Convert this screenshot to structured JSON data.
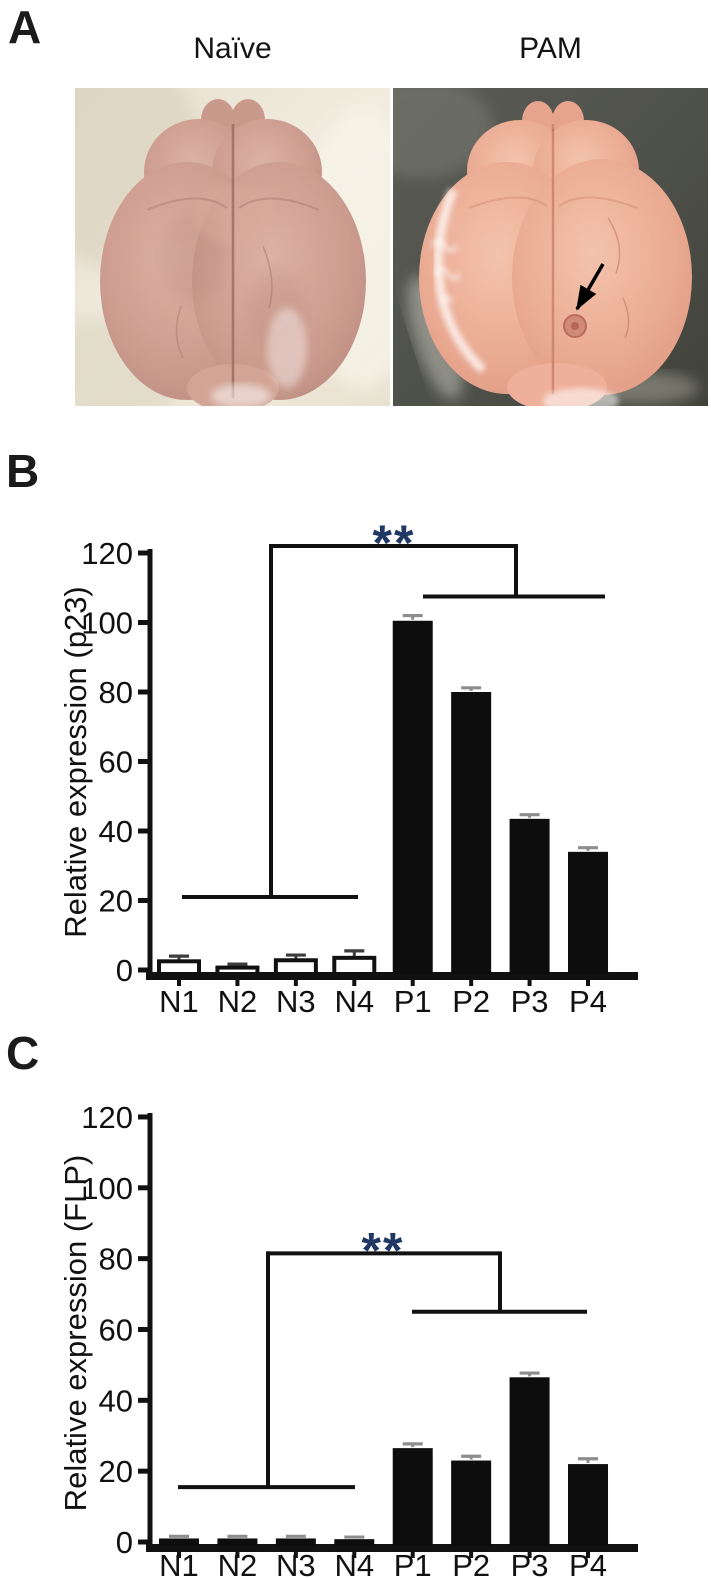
{
  "figure": {
    "colors": {
      "ink": "#111111",
      "significance_star": "#1f3864",
      "solid_bar": "#0d0d0d",
      "open_bar_fill": "#ffffff",
      "naive_photo_bg": "#ece5d6",
      "naive_brain": "#cc9c8f",
      "pam_photo_bg": "#50524a",
      "pam_brain": "#eaaa92"
    },
    "panels": {
      "a": {
        "letter": "A",
        "photos": [
          {
            "id": "naive",
            "label": "Naïve"
          },
          {
            "id": "pam",
            "label": "PAM",
            "annotation": "lesion-arrow"
          }
        ]
      },
      "b": {
        "letter": "B"
      },
      "c": {
        "letter": "C"
      }
    }
  },
  "chart_data": [
    {
      "panel": "B",
      "type": "bar",
      "title": "",
      "xlabel": "",
      "ylabel": "Relative expression (p23)",
      "categories": [
        "N1",
        "N2",
        "N3",
        "N4",
        "P1",
        "P2",
        "P3",
        "P4"
      ],
      "values": [
        2.5,
        0.7,
        2.8,
        3.5,
        100.5,
        80,
        43.5,
        34
      ],
      "errors": [
        1.5,
        1,
        1.5,
        2,
        1.5,
        1.2,
        1.2,
        1.2
      ],
      "bar_fill": [
        "open",
        "open",
        "open",
        "open",
        "solid",
        "solid",
        "solid",
        "solid"
      ],
      "bar_color": "#0d0d0d",
      "ylim": [
        0,
        120
      ],
      "yticks": [
        0,
        20,
        40,
        60,
        80,
        100,
        120
      ],
      "grid": false,
      "significance": {
        "label": "**",
        "color": "#1f3864",
        "compares": [
          "N1-N4",
          "P1-P4"
        ],
        "n_line_value": 21,
        "p_line_value": 107.5,
        "top_value": 122
      }
    },
    {
      "panel": "C",
      "type": "bar",
      "title": "",
      "xlabel": "",
      "ylabel": "Relative expression (FLP)",
      "categories": [
        "N1",
        "N2",
        "N3",
        "N4",
        "P1",
        "P2",
        "P3",
        "P4"
      ],
      "values": [
        1,
        1,
        1,
        0.8,
        26.5,
        23,
        46.5,
        22
      ],
      "errors": [
        0.6,
        0.6,
        0.6,
        0.6,
        1.2,
        1.2,
        1.2,
        1.5
      ],
      "bar_fill": [
        "solid",
        "solid",
        "solid",
        "solid",
        "solid",
        "solid",
        "solid",
        "solid"
      ],
      "bar_color": "#0d0d0d",
      "ylim": [
        0,
        120
      ],
      "yticks": [
        0,
        20,
        40,
        60,
        80,
        100,
        120
      ],
      "grid": false,
      "significance": {
        "label": "**",
        "color": "#1f3864",
        "compares": [
          "N1-N4",
          "P1-P4"
        ],
        "n_line_value": 15.5,
        "p_line_value": 65,
        "top_value": 81.5
      }
    }
  ]
}
